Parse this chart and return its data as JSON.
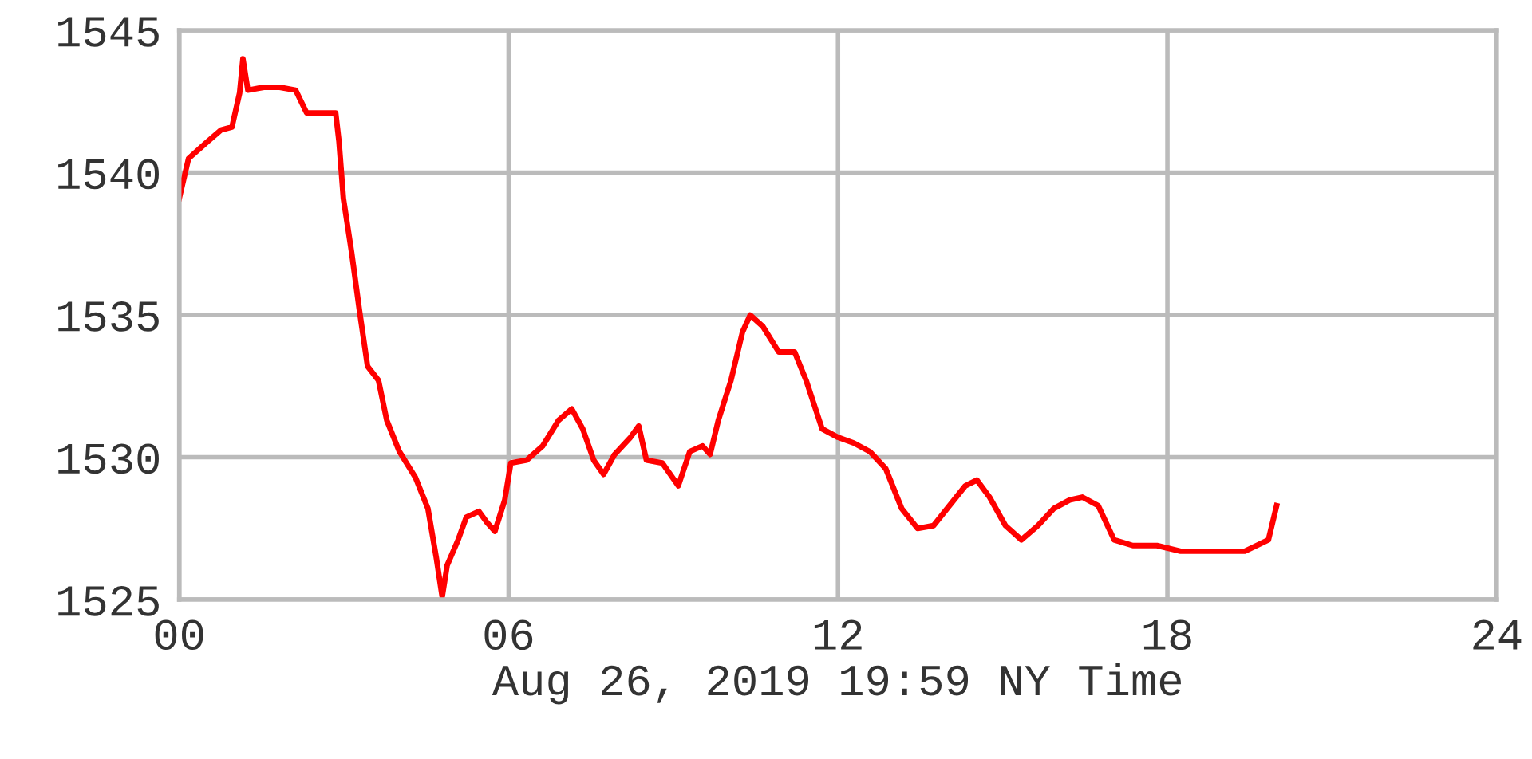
{
  "chart_data": {
    "type": "line",
    "xlabel": "Aug 26, 2019 19:59 NY Time",
    "x": [
      0,
      0.17,
      0.52,
      0.76,
      0.96,
      1.1,
      1.16,
      1.25,
      1.54,
      1.83,
      2.12,
      2.32,
      2.56,
      2.85,
      2.91,
      2.99,
      3.14,
      3.28,
      3.43,
      3.63,
      3.78,
      4.01,
      4.3,
      4.53,
      4.68,
      4.79,
      4.88,
      5.08,
      5.23,
      5.46,
      5.61,
      5.75,
      5.93,
      6.04,
      6.33,
      6.62,
      6.91,
      7.15,
      7.35,
      7.55,
      7.73,
      7.93,
      8.22,
      8.37,
      8.51,
      8.8,
      9.09,
      9.3,
      9.53,
      9.67,
      9.82,
      10.05,
      10.26,
      10.4,
      10.63,
      10.92,
      11.21,
      11.42,
      11.71,
      12.0,
      12.29,
      12.58,
      12.87,
      13.16,
      13.45,
      13.74,
      14.03,
      14.32,
      14.53,
      14.76,
      15.05,
      15.34,
      15.64,
      15.93,
      16.22,
      16.45,
      16.74,
      17.03,
      17.37,
      17.81,
      18.24,
      18.83,
      19.41,
      19.84,
      19.99
    ],
    "series": [
      {
        "color": "#ff0000",
        "values": [
          1539.1,
          1540.5,
          1541.1,
          1541.5,
          1541.6,
          1542.8,
          1544.0,
          1542.9,
          1543.0,
          1543.0,
          1542.9,
          1542.1,
          1542.1,
          1542.1,
          1541.1,
          1539.1,
          1537.2,
          1535.2,
          1533.2,
          1532.7,
          1531.3,
          1530.2,
          1529.3,
          1528.2,
          1526.5,
          1525.1,
          1526.2,
          1527.1,
          1527.9,
          1528.1,
          1527.7,
          1527.4,
          1528.5,
          1529.8,
          1529.9,
          1530.4,
          1531.3,
          1531.7,
          1531.0,
          1529.9,
          1529.4,
          1530.1,
          1530.7,
          1531.1,
          1529.9,
          1529.8,
          1529.0,
          1530.2,
          1530.4,
          1530.1,
          1531.3,
          1532.7,
          1534.4,
          1535.0,
          1534.6,
          1533.7,
          1533.7,
          1532.7,
          1531.0,
          1530.7,
          1530.5,
          1530.2,
          1529.6,
          1528.2,
          1527.5,
          1527.6,
          1528.3,
          1529.0,
          1529.2,
          1528.6,
          1527.6,
          1527.1,
          1527.6,
          1528.2,
          1528.5,
          1528.6,
          1528.3,
          1527.1,
          1526.9,
          1526.9,
          1526.7,
          1526.7,
          1526.7,
          1527.1,
          1528.3
        ]
      }
    ],
    "xlim": [
      0,
      24
    ],
    "xticks": [
      {
        "value": 0,
        "label": "00"
      },
      {
        "value": 6,
        "label": "06"
      },
      {
        "value": 12,
        "label": "12"
      },
      {
        "value": 18,
        "label": "18"
      },
      {
        "value": 24,
        "label": "24"
      }
    ],
    "ylim": [
      1525,
      1545
    ],
    "yticks": [
      1525,
      1530,
      1535,
      1540,
      1545
    ],
    "grid": true,
    "legend": false,
    "marker": "none",
    "line_style": "solid"
  }
}
